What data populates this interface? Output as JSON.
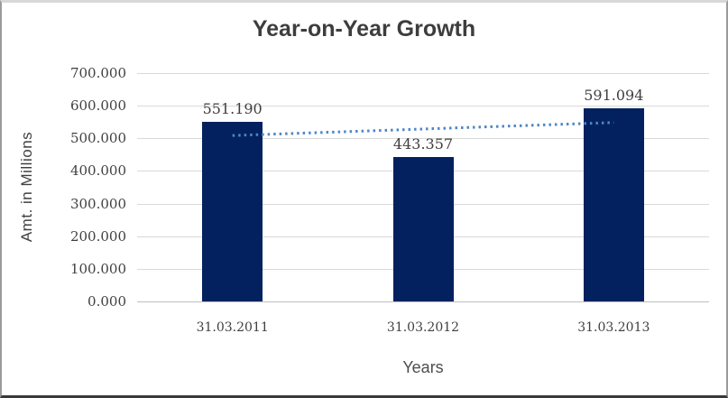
{
  "chart_data": {
    "type": "bar",
    "title": "Year-on-Year Growth",
    "xlabel": "Years",
    "ylabel": "Amt. in Millions",
    "categories": [
      "31.03.2011",
      "31.03.2012",
      "31.03.2013"
    ],
    "values": [
      551.19,
      443.357,
      591.094
    ],
    "data_labels": [
      "551.190",
      "443.357",
      "591.094"
    ],
    "ylim": [
      0,
      700
    ],
    "ytick_step": 100,
    "ytick_labels": [
      "0.000",
      "100.000",
      "200.000",
      "300.000",
      "400.000",
      "500.000",
      "600.000",
      "700.000"
    ],
    "grid": true,
    "legend": "none",
    "bar_color": "#03215f",
    "gridline_color": "#d9d9d9",
    "axis_line_color": "#bfbfbf",
    "trendline": {
      "type": "linear",
      "style": "dotted",
      "color": "#4f86c6",
      "endpoints_y": [
        508.6,
        548.5
      ]
    }
  }
}
